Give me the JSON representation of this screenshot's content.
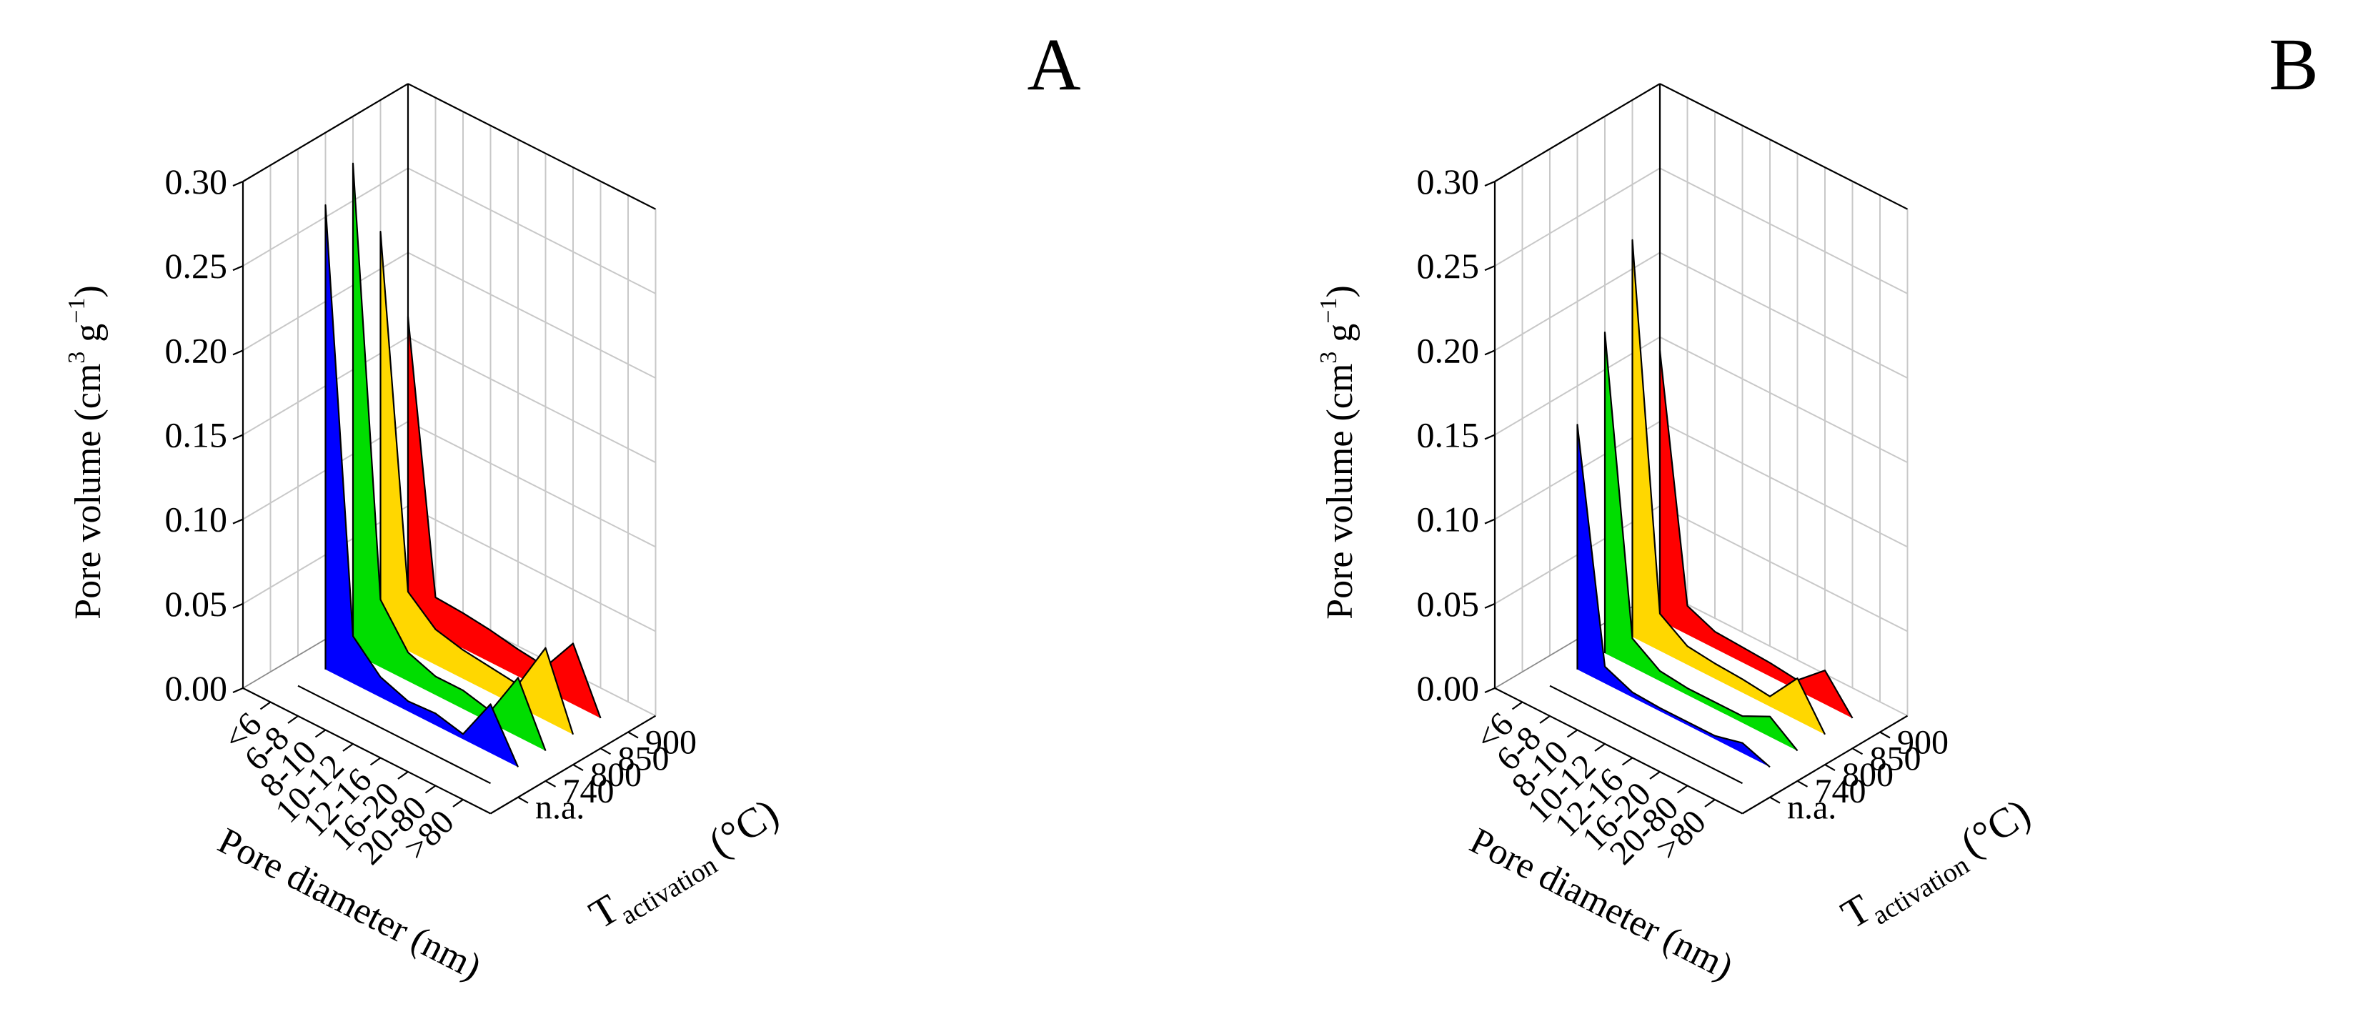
{
  "chart_data": [
    {
      "type": "3d-area",
      "panel_label": "A",
      "zlabel": "Pore volume (cm",
      "zlabel_unit_parts": [
        "3",
        " g",
        "−1",
        ")"
      ],
      "xlabel": "Pore diameter (nm)",
      "ylabel_main": "T",
      "ylabel_sub": "activation",
      "ylabel_unit": "(°C)",
      "x_categories": [
        "<6",
        "6-8",
        "8-10",
        "10-12",
        "12-16",
        "16-20",
        "20-80",
        ">80"
      ],
      "y_categories": [
        "n.a.",
        "740",
        "800",
        "850",
        "900"
      ],
      "z_ticks": [
        "0.00",
        "0.05",
        "0.10",
        "0.15",
        "0.20",
        "0.25",
        "0.30"
      ],
      "zlim": [
        0,
        0.3
      ],
      "series": [
        {
          "name": "n.a.",
          "color": "#000080",
          "values": [
            0.0,
            0.0,
            0.0,
            0.0,
            0.0,
            0.0,
            0.0,
            0.0
          ]
        },
        {
          "name": "740",
          "color": "#0000ff",
          "values": [
            0.275,
            0.028,
            0.012,
            0.006,
            0.007,
            0.003,
            0.029,
            0.0
          ]
        },
        {
          "name": "800",
          "color": "#00dd00",
          "values": [
            0.29,
            0.04,
            0.017,
            0.011,
            0.011,
            0.007,
            0.035,
            0.0
          ]
        },
        {
          "name": "850",
          "color": "#ffd700",
          "values": [
            0.24,
            0.035,
            0.021,
            0.017,
            0.015,
            0.013,
            0.043,
            0.0
          ]
        },
        {
          "name": "900",
          "color": "#ff0000",
          "values": [
            0.18,
            0.022,
            0.021,
            0.019,
            0.016,
            0.014,
            0.036,
            0.0
          ]
        }
      ]
    },
    {
      "type": "3d-area",
      "panel_label": "B",
      "zlabel": "Pore volume (cm",
      "zlabel_unit_parts": [
        "3",
        " g",
        "−1",
        ")"
      ],
      "xlabel": "Pore diameter (nm)",
      "ylabel_main": "T",
      "ylabel_sub": "activation",
      "ylabel_unit": "(°C)",
      "x_categories": [
        "<6",
        "6-8",
        "8-10",
        "10-12",
        "12-16",
        "16-20",
        "20-80",
        ">80"
      ],
      "y_categories": [
        "n.a.",
        "740",
        "800",
        "850",
        "900"
      ],
      "z_ticks": [
        "0.00",
        "0.05",
        "0.10",
        "0.15",
        "0.20",
        "0.25",
        "0.30"
      ],
      "zlim": [
        0,
        0.3
      ],
      "series": [
        {
          "name": "n.a.",
          "color": "#000080",
          "values": [
            0.0,
            0.0,
            0.0,
            0.0,
            0.0,
            0.0,
            0.0,
            0.0
          ]
        },
        {
          "name": "740",
          "color": "#0000ff",
          "values": [
            0.145,
            0.01,
            0.003,
            0.002,
            0.002,
            0.002,
            0.006,
            0.0
          ]
        },
        {
          "name": "800",
          "color": "#00dd00",
          "values": [
            0.19,
            0.017,
            0.006,
            0.004,
            0.004,
            0.004,
            0.012,
            0.0
          ]
        },
        {
          "name": "850",
          "color": "#ffd700",
          "values": [
            0.235,
            0.022,
            0.011,
            0.009,
            0.008,
            0.006,
            0.025,
            0.0
          ]
        },
        {
          "name": "900",
          "color": "#ff0000",
          "values": [
            0.16,
            0.017,
            0.01,
            0.009,
            0.008,
            0.006,
            0.02,
            0.0
          ]
        }
      ]
    }
  ]
}
